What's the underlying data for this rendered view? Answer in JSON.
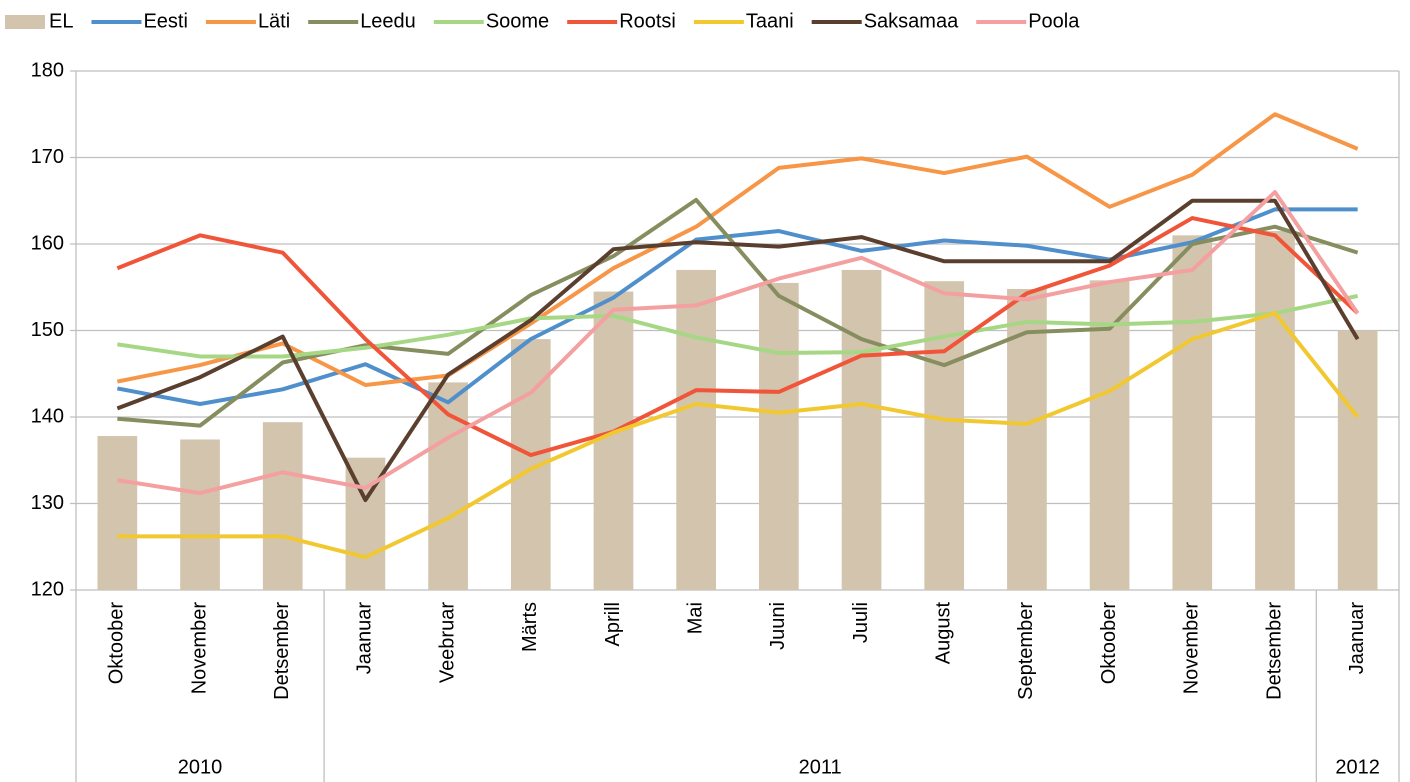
{
  "chart_data": {
    "type": "combo",
    "categories": [
      "Oktoober",
      "November",
      "Detsember",
      "Jaanuar",
      "Veebruar",
      "Märts",
      "Aprill",
      "Mai",
      "Juuni",
      "Juuli",
      "August",
      "September",
      "Oktoober",
      "November",
      "Detsember",
      "Jaanuar"
    ],
    "category_groups": [
      "2010",
      "2010",
      "2010",
      "2011",
      "2011",
      "2011",
      "2011",
      "2011",
      "2011",
      "2011",
      "2011",
      "2011",
      "2011",
      "2011",
      "2011",
      "2012"
    ],
    "ylim": [
      120,
      180
    ],
    "yticks": [
      120,
      130,
      140,
      150,
      160,
      170,
      180
    ],
    "grid": true,
    "legend": "top",
    "series": [
      {
        "name": "EL",
        "type": "bar",
        "color": "#d3c4ae",
        "values": [
          137.8,
          137.4,
          139.4,
          135.3,
          144,
          149,
          154.5,
          157,
          155.5,
          157,
          155.7,
          154.8,
          155.8,
          161,
          161.5,
          150
        ]
      },
      {
        "name": "Eesti",
        "type": "line",
        "color": "#4f8fcc",
        "values": [
          143.3,
          141.5,
          143.2,
          146.1,
          141.7,
          149,
          153.8,
          160.5,
          161.5,
          159.2,
          160.4,
          159.8,
          158.2,
          160.2,
          164,
          164
        ]
      },
      {
        "name": "Läti",
        "type": "line",
        "color": "#f79646",
        "values": [
          144.1,
          146,
          148.5,
          143.7,
          144.8,
          150.8,
          157.2,
          162,
          168.8,
          169.9,
          168.2,
          170.1,
          164.3,
          168,
          175,
          171
        ]
      },
      {
        "name": "Leedu",
        "type": "line",
        "color": "#868e5f",
        "values": [
          139.8,
          139,
          146.3,
          148.3,
          147.3,
          154.1,
          158.6,
          165.1,
          154,
          149,
          146,
          149.8,
          150.2,
          160,
          162,
          159
        ]
      },
      {
        "name": "Soome",
        "type": "line",
        "color": "#a6d785",
        "values": [
          148.4,
          147,
          147,
          148,
          149.5,
          151.4,
          151.7,
          149.2,
          147.4,
          147.5,
          149.3,
          151,
          150.7,
          151,
          152,
          154
        ]
      },
      {
        "name": "Rootsi",
        "type": "line",
        "color": "#f0553a",
        "values": [
          157.2,
          161,
          159,
          149,
          140.3,
          135.6,
          138.3,
          143.1,
          142.9,
          147.1,
          147.6,
          154.3,
          157.5,
          163,
          161,
          152
        ]
      },
      {
        "name": "Taani",
        "type": "line",
        "color": "#f2c830",
        "values": [
          126.2,
          126.2,
          126.2,
          123.8,
          128.3,
          134,
          138.2,
          141.5,
          140.5,
          141.5,
          139.7,
          139.2,
          143,
          149,
          152,
          140
        ]
      },
      {
        "name": "Saksamaa",
        "type": "line",
        "color": "#5a3e2e",
        "values": [
          141,
          144.6,
          149.3,
          130.4,
          144.9,
          151.2,
          159.4,
          160.2,
          159.7,
          160.8,
          158,
          158,
          158,
          165,
          165,
          149
        ]
      },
      {
        "name": "Poola",
        "type": "line",
        "color": "#f4a0a0",
        "values": [
          132.7,
          131.2,
          133.6,
          131.8,
          137.6,
          142.8,
          152.4,
          152.9,
          156,
          158.4,
          154.3,
          153.6,
          155.6,
          157,
          166,
          152
        ]
      }
    ]
  }
}
